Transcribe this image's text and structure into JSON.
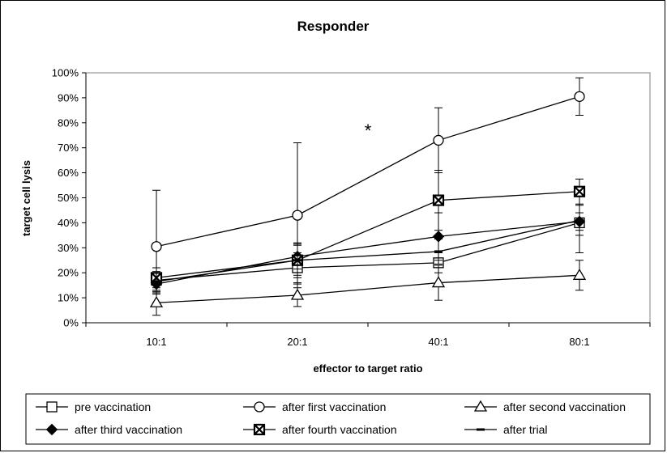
{
  "chart_data": {
    "type": "line",
    "title": "Responder",
    "xlabel": "effector to target ratio",
    "ylabel": "target cell lysis",
    "categories": [
      "10:1",
      "20:1",
      "40:1",
      "80:1"
    ],
    "ylim": [
      0,
      100
    ],
    "y_tick_format": "percent",
    "y_ticks": [
      0,
      10,
      20,
      30,
      40,
      50,
      60,
      70,
      80,
      90,
      100
    ],
    "y_tick_labels": [
      "0%",
      "10%",
      "20%",
      "30%",
      "40%",
      "50%",
      "60%",
      "70%",
      "80%",
      "90%",
      "100%"
    ],
    "grid": false,
    "legend_position": "bottom",
    "annotations": [
      {
        "text": "*",
        "between": [
          "20:1",
          "40:1"
        ],
        "y": 77
      }
    ],
    "series": [
      {
        "name": "pre vaccination",
        "marker": "open-square",
        "values": [
          17,
          22,
          24,
          40
        ],
        "errors": [
          5,
          6,
          4,
          12
        ]
      },
      {
        "name": "after first vaccination",
        "marker": "open-circle",
        "values": [
          30.5,
          43,
          73,
          90.5
        ],
        "errors": [
          22.5,
          29,
          13,
          7.5
        ]
      },
      {
        "name": "after second vaccination",
        "marker": "open-triangle",
        "values": [
          8,
          11,
          16,
          19
        ],
        "errors": [
          5,
          4.5,
          7,
          6
        ]
      },
      {
        "name": "after third vaccination",
        "marker": "filled-diamond",
        "values": [
          15.5,
          26.5,
          34.5,
          40.5
        ],
        "errors": [
          4,
          5,
          9.5,
          3.5
        ]
      },
      {
        "name": "after fourth vaccination",
        "marker": "x-square",
        "values": [
          18,
          25,
          49,
          52.5
        ],
        "errors": [
          4,
          6,
          12,
          5
        ]
      },
      {
        "name": "after trial",
        "marker": "dash",
        "values": [
          16.5,
          25,
          28.5,
          41
        ],
        "errors": [
          4,
          7,
          5,
          6
        ]
      }
    ]
  }
}
